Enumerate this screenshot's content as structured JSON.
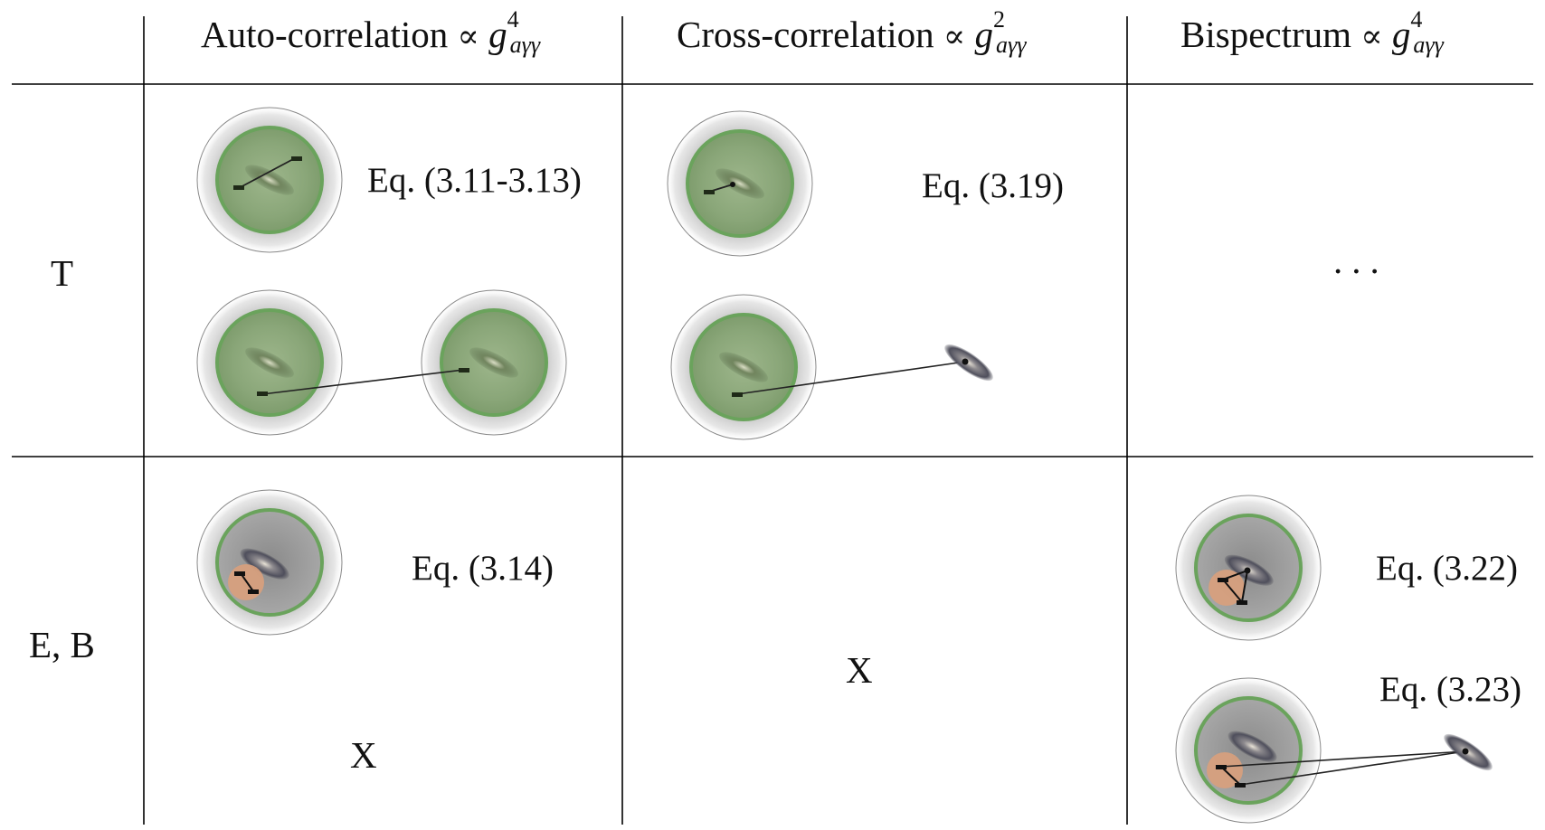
{
  "columns": [
    {
      "label": "Auto-correlation",
      "prop": "∝",
      "g": "g",
      "sup": "4",
      "sub": "aγγ"
    },
    {
      "label": "Cross-correlation",
      "prop": "∝",
      "g": "g",
      "sup": "2",
      "sub": "aγγ"
    },
    {
      "label": "Bispectrum",
      "prop": "∝",
      "g": "g",
      "sup": "4",
      "sub": "aγγ"
    }
  ],
  "rows": [
    "T",
    "E, B"
  ],
  "cells": {
    "t_auto_eq": "Eq. (3.11-3.13)",
    "t_cross_eq": "Eq. (3.19)",
    "t_bispec_dots": "...",
    "eb_auto_eq": "Eq. (3.14)",
    "eb_auto_x": "X",
    "eb_cross_x": "X",
    "eb_bispec_eq1": "Eq. (3.22)",
    "eb_bispec_eq2": "Eq. (3.23)"
  },
  "colors": {
    "halo_ring": "#6aa35c",
    "halo_fill": "#8fb07c",
    "shadow": "#9a9a9a",
    "orange_patch": "#d9a07c",
    "galaxy": "#5e5e66",
    "rule": "#000000"
  }
}
